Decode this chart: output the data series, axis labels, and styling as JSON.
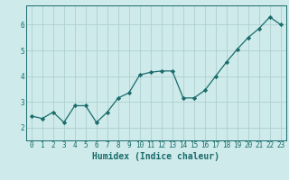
{
  "x": [
    0,
    1,
    2,
    3,
    4,
    5,
    6,
    7,
    8,
    9,
    10,
    11,
    12,
    13,
    14,
    15,
    16,
    17,
    18,
    19,
    20,
    21,
    22,
    23
  ],
  "y": [
    2.45,
    2.35,
    2.6,
    2.2,
    2.85,
    2.85,
    2.2,
    2.6,
    3.15,
    3.35,
    4.05,
    4.15,
    4.2,
    4.2,
    3.15,
    3.15,
    3.45,
    4.0,
    4.55,
    5.05,
    5.5,
    5.85,
    6.3,
    6.0
  ],
  "xlabel": "Humidex (Indice chaleur)",
  "ylabel": "",
  "title": "",
  "bg_color": "#ceeaea",
  "grid_color": "#aed0d0",
  "line_color": "#1a6b6b",
  "marker_color": "#1a6b6b",
  "xlim": [
    -0.5,
    23.5
  ],
  "ylim": [
    1.5,
    6.75
  ],
  "yticks": [
    2,
    3,
    4,
    5,
    6
  ],
  "xticks": [
    0,
    1,
    2,
    3,
    4,
    5,
    6,
    7,
    8,
    9,
    10,
    11,
    12,
    13,
    14,
    15,
    16,
    17,
    18,
    19,
    20,
    21,
    22,
    23
  ],
  "tick_fontsize": 5.5,
  "xlabel_fontsize": 7.0
}
